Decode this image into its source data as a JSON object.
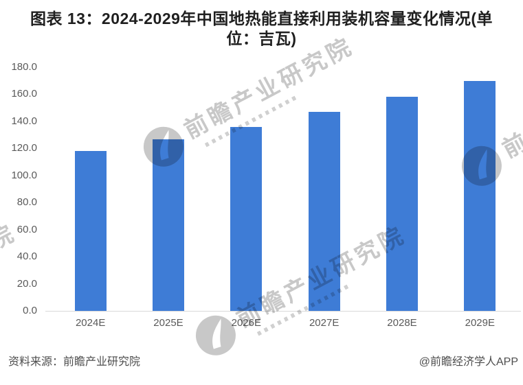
{
  "header": {
    "title_line1": "图表 13：2024-2029年中国地热能直接利用装机容量变化情况(单",
    "title_line2": "位：吉瓦)"
  },
  "chart_data": {
    "type": "bar",
    "title": "图表 13：2024-2029年中国地热能直接利用装机容量变化情况(单位：吉瓦)",
    "unit": "吉瓦",
    "categories": [
      "2024E",
      "2025E",
      "2026E",
      "2027E",
      "2028E",
      "2029E"
    ],
    "values": [
      118.0,
      127.0,
      136.0,
      147.0,
      158.0,
      170.0
    ],
    "xlabel": "",
    "ylabel": "",
    "ylim": [
      0,
      180
    ],
    "ytick_step": 20,
    "ytick_format": "0.0",
    "grid": false,
    "legend": "none",
    "bar_color": "#3E7CD6"
  },
  "footer": {
    "source": "资料来源：前瞻产业研究院",
    "credit": "@前瞻经济学人APP"
  },
  "watermark": {
    "brand": "前瞻产业研究院"
  },
  "colors": {
    "bar": "#3E7CD6",
    "title_text": "#1f1f1f",
    "axis_text": "#595959",
    "footer_text": "#4d4d4d",
    "axis_line": "#d9d9d9",
    "watermark": "#c8c8c8",
    "background": "#ffffff"
  }
}
